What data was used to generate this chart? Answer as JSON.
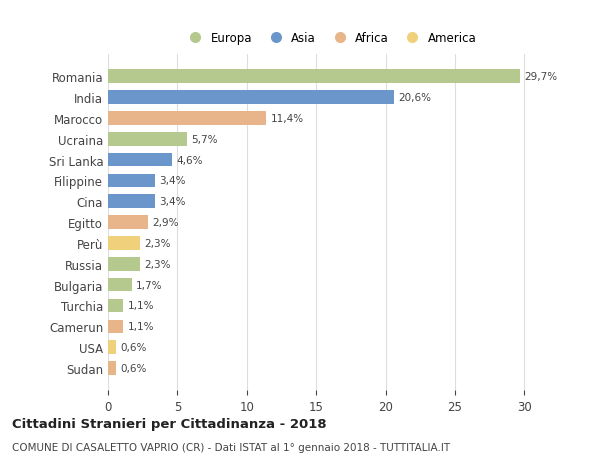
{
  "categories": [
    "Romania",
    "India",
    "Marocco",
    "Ucraina",
    "Sri Lanka",
    "Filippine",
    "Cina",
    "Egitto",
    "Perù",
    "Russia",
    "Bulgaria",
    "Turchia",
    "Camerun",
    "USA",
    "Sudan"
  ],
  "values": [
    29.7,
    20.6,
    11.4,
    5.7,
    4.6,
    3.4,
    3.4,
    2.9,
    2.3,
    2.3,
    1.7,
    1.1,
    1.1,
    0.6,
    0.6
  ],
  "labels": [
    "29,7%",
    "20,6%",
    "11,4%",
    "5,7%",
    "4,6%",
    "3,4%",
    "3,4%",
    "2,9%",
    "2,3%",
    "2,3%",
    "1,7%",
    "1,1%",
    "1,1%",
    "0,6%",
    "0,6%"
  ],
  "colors": [
    "#b5c98e",
    "#6b96cc",
    "#e8b48a",
    "#b5c98e",
    "#6b96cc",
    "#6b96cc",
    "#6b96cc",
    "#e8b48a",
    "#f0d07a",
    "#b5c98e",
    "#b5c98e",
    "#b5c98e",
    "#e8b48a",
    "#f0d07a",
    "#e8b48a"
  ],
  "legend_names": [
    "Europa",
    "Asia",
    "Africa",
    "America"
  ],
  "legend_colors": [
    "#b5c98e",
    "#6b96cc",
    "#e8b48a",
    "#f0d07a"
  ],
  "title": "Cittadini Stranieri per Cittadinanza - 2018",
  "subtitle": "COMUNE DI CASALETTO VAPRIO (CR) - Dati ISTAT al 1° gennaio 2018 - TUTTITALIA.IT",
  "xlim": [
    0,
    32
  ],
  "xticks": [
    0,
    5,
    10,
    15,
    20,
    25,
    30
  ],
  "background_color": "#ffffff",
  "grid_color": "#dddddd"
}
